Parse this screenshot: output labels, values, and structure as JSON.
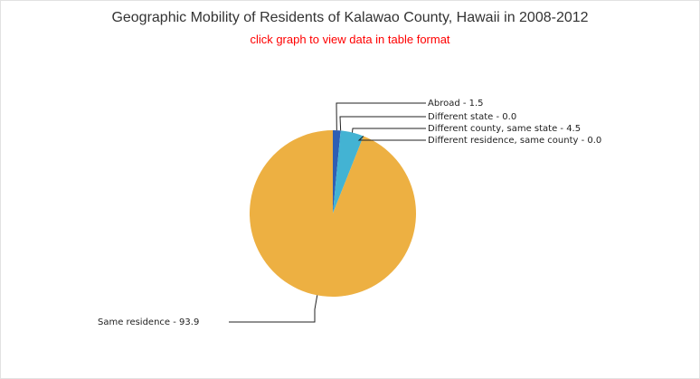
{
  "title": "Geographic Mobility of Residents of Kalawao County, Hawaii in 2008-2012",
  "subtitle_link": "click graph to view data in table format",
  "chart_data": {
    "type": "pie",
    "title": "Geographic Mobility of Residents of Kalawao County, Hawaii in 2008-2012",
    "slices": [
      {
        "name": "Abroad",
        "value": 1.5,
        "label": "Abroad - 1.5",
        "color": "#2f5fb3"
      },
      {
        "name": "Different state",
        "value": 0.0,
        "label": "Different state - 0.0",
        "color": "#9fd4e3"
      },
      {
        "name": "Different county, same state",
        "value": 4.5,
        "label": "Different county, same state - 4.5",
        "color": "#43b3d3"
      },
      {
        "name": "Different residence, same county",
        "value": 0.0,
        "label": "Different residence, same county - 0.0",
        "color": "#7fc8de"
      },
      {
        "name": "Same residence",
        "value": 93.9,
        "label": "Same residence - 93.9",
        "color": "#edb042"
      }
    ]
  }
}
